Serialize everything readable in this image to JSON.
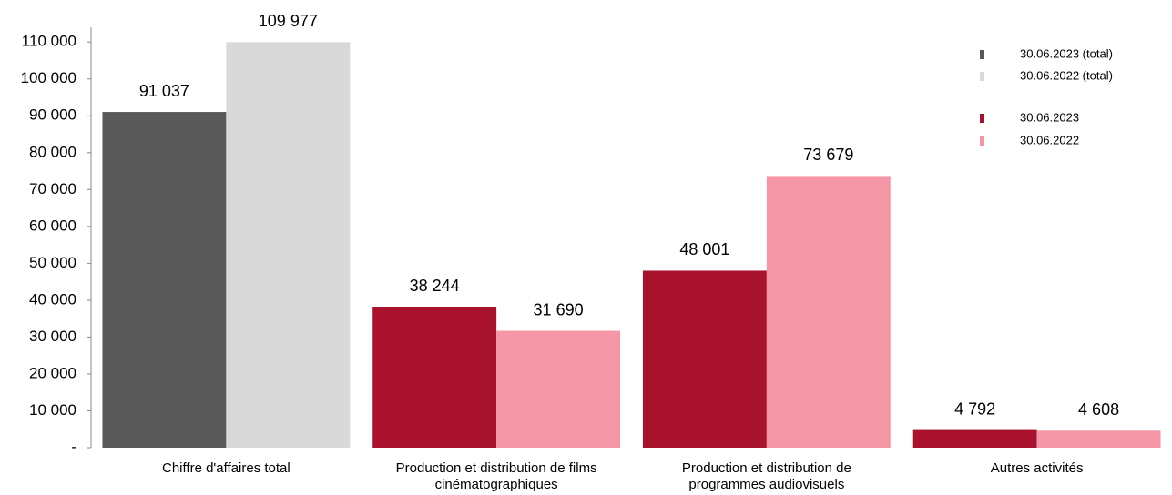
{
  "chart_data": {
    "type": "bar",
    "categories": [
      "Chiffre d'affaires total",
      "Production et distribution de films cinématographiques",
      "Production et distribution de programmes audiovisuels",
      "Autres activités"
    ],
    "series": [
      {
        "name": "30.06.2023 (total)",
        "color": "#595959",
        "values": [
          91037,
          null,
          null,
          null
        ],
        "value_labels": [
          "91 037",
          null,
          null,
          null
        ]
      },
      {
        "name": "30.06.2022 (total)",
        "color": "#d9d9d9",
        "values": [
          109977,
          null,
          null,
          null
        ],
        "value_labels": [
          "109 977",
          null,
          null,
          null
        ]
      },
      {
        "name": "30.06.2023",
        "color": "#a8122d",
        "values": [
          null,
          38244,
          48001,
          4792
        ],
        "value_labels": [
          null,
          "38 244",
          "48 001",
          "4 792"
        ]
      },
      {
        "name": "30.06.2022",
        "color": "#f496a5",
        "values": [
          null,
          31690,
          73679,
          4608
        ],
        "value_labels": [
          null,
          "31 690",
          "73 679",
          "4 608"
        ]
      }
    ],
    "ylim": [
      0,
      114000
    ],
    "yticks": [
      {
        "value": 0,
        "label": "-"
      },
      {
        "value": 10000,
        "label": "10 000"
      },
      {
        "value": 20000,
        "label": "20 000"
      },
      {
        "value": 30000,
        "label": "30 000"
      },
      {
        "value": 40000,
        "label": "40 000"
      },
      {
        "value": 50000,
        "label": "50 000"
      },
      {
        "value": 60000,
        "label": "60 000"
      },
      {
        "value": 70000,
        "label": "70 000"
      },
      {
        "value": 80000,
        "label": "80 000"
      },
      {
        "value": 90000,
        "label": "90 000"
      },
      {
        "value": 100000,
        "label": "100 000"
      },
      {
        "value": 110000,
        "label": "110 000"
      }
    ],
    "grid": false,
    "legend": "upper right"
  }
}
